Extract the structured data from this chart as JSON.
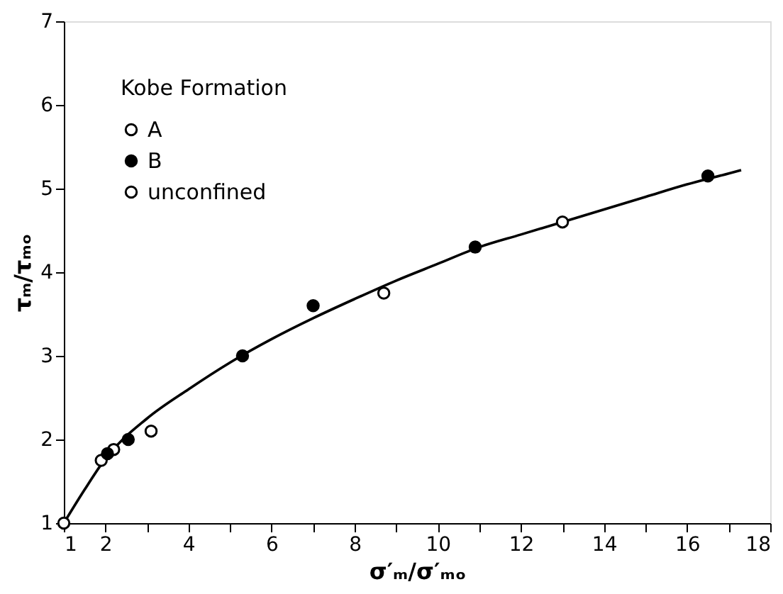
{
  "chart_data": {
    "type": "scatter",
    "xlabel": "σ′ₘ/σ′ₘₒ",
    "ylabel": "τₘ/τₘₒ",
    "legend_title": "Kobe Formation",
    "legend": "top left",
    "grid": false,
    "marker": "circle",
    "xlim": [
      1,
      18
    ],
    "ylim": [
      1,
      7
    ],
    "xticks": [
      1,
      2,
      {
        "value": 3,
        "label": null
      },
      4,
      {
        "value": 5,
        "label": null
      },
      6,
      {
        "value": 7,
        "label": null
      },
      8,
      {
        "value": 9,
        "label": null
      },
      10,
      {
        "value": 11,
        "label": null
      },
      12,
      {
        "value": 13,
        "label": null
      },
      14,
      {
        "value": 15,
        "label": null
      },
      16,
      {
        "value": 17,
        "label": null
      },
      18
    ],
    "yticks": [
      1,
      2,
      3,
      4,
      5,
      6,
      7
    ],
    "series": [
      {
        "name": "A",
        "color": "#ffffff",
        "x": [
          1.9,
          2.2,
          3.1,
          8.7,
          13.0
        ],
        "values": [
          1.75,
          1.88,
          2.1,
          3.75,
          4.6
        ]
      },
      {
        "name": "B",
        "color": "#000000",
        "x": [
          2.05,
          2.55,
          5.3,
          7.0,
          10.9,
          16.5
        ],
        "values": [
          1.83,
          2.0,
          3.0,
          3.6,
          4.3,
          5.15
        ]
      },
      {
        "name": "unconfined",
        "color": "#ffffff",
        "x": [
          1.0
        ],
        "values": [
          1.0
        ]
      },
      {
        "type": "line",
        "color": "#000000",
        "marker": "none",
        "x": [
          1,
          1.5,
          2,
          3,
          4,
          5,
          6,
          7,
          8,
          9,
          10,
          11,
          12,
          13,
          14,
          15,
          16,
          17,
          17.3
        ],
        "values": [
          1,
          1.4,
          1.77,
          2.25,
          2.6,
          2.92,
          3.2,
          3.45,
          3.68,
          3.9,
          4.1,
          4.3,
          4.45,
          4.6,
          4.75,
          4.9,
          5.05,
          5.18,
          5.22
        ]
      }
    ]
  }
}
